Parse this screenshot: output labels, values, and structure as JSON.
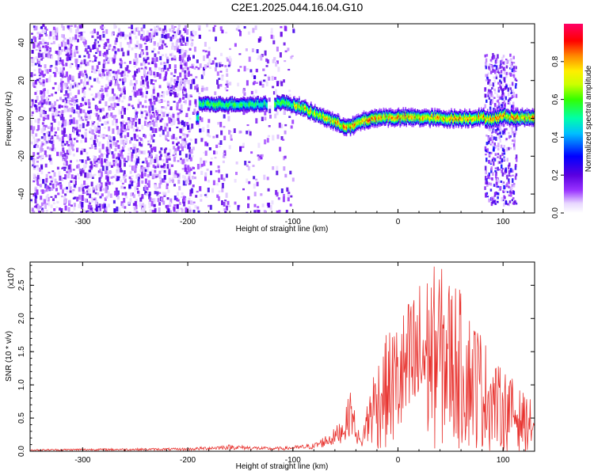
{
  "figure": {
    "title": "C2E1.2025.044.16.04.G10"
  },
  "chart_data": [
    {
      "type": "heatmap",
      "xlabel": "Height of straight line (km)",
      "ylabel": "Frequency (Hz)",
      "xlim": [
        -350,
        130
      ],
      "ylim": [
        -50,
        50
      ],
      "x_ticks": [
        -300,
        -200,
        -100,
        0,
        100
      ],
      "y_ticks": [
        -40,
        -20,
        0,
        20,
        40
      ],
      "colorbar": {
        "label": "Normalized spectral amplitude",
        "range": [
          0,
          1
        ],
        "ticks": [
          "0.0",
          "0.2",
          "0.4",
          "0.6",
          "0.8"
        ],
        "colors": [
          "#ffffff",
          "#e8d8ff",
          "#9933ff",
          "#5a00e0",
          "#0000ff",
          "#00bfff",
          "#00ffaa",
          "#33ff00",
          "#ccff00",
          "#ffee00",
          "#ff8800",
          "#ff0000",
          "#ff0066"
        ]
      },
      "ridge": {
        "description_points_x": [
          -190,
          -170,
          -150,
          -130,
          -110,
          -95,
          -80,
          -65,
          -55,
          -45,
          -35,
          -20,
          0,
          20,
          40,
          60,
          80,
          90,
          100,
          110,
          130
        ],
        "description_points_y": [
          8,
          8,
          8,
          8,
          9,
          7,
          3,
          0,
          -3,
          -4,
          -1,
          1,
          1,
          1,
          0.5,
          0.5,
          1,
          0,
          2,
          1,
          1
        ]
      }
    },
    {
      "type": "line",
      "xlabel": "Height of straight line (km)",
      "ylabel": "SNR (10 * v/v)",
      "y_multiplier": "(x10",
      "y_multiplier_exp": "4",
      "xlim": [
        -350,
        130
      ],
      "ylim": [
        0,
        2.85
      ],
      "x_ticks": [
        -300,
        -200,
        -100,
        0,
        100
      ],
      "y_ticks": [
        "0.0",
        "0.5",
        "1.0",
        "1.5",
        "2.0",
        "2.5"
      ],
      "series": [
        {
          "color": "#e8332f",
          "envelope_x": [
            -350,
            -300,
            -200,
            -160,
            -120,
            -100,
            -80,
            -60,
            -50,
            -45,
            -40,
            -35,
            -30,
            -25,
            -20,
            -10,
            0,
            10,
            20,
            30,
            38,
            45,
            55,
            65,
            75,
            85,
            95,
            105,
            115,
            125,
            130
          ],
          "envelope_y": [
            0.03,
            0.04,
            0.05,
            0.1,
            0.06,
            0.08,
            0.12,
            0.35,
            0.6,
            1.0,
            0.5,
            0.15,
            0.7,
            1.2,
            1.4,
            1.8,
            2.0,
            2.3,
            2.6,
            2.75,
            2.85,
            2.7,
            2.6,
            2.2,
            2.0,
            1.6,
            1.3,
            1.2,
            0.95,
            0.8,
            0.7
          ]
        }
      ]
    }
  ]
}
